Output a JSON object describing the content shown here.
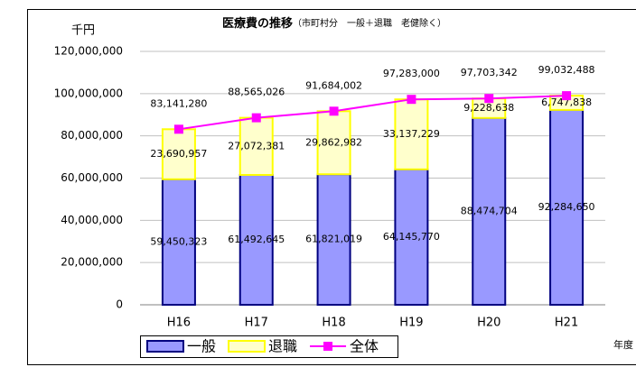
{
  "chart_data": {
    "type": "bar_line",
    "title": "医療費の推移",
    "subtitle": "（市町村分　一般＋退職　老健除く）",
    "y_label": "千円",
    "x_label": "年度",
    "categories": [
      "H16",
      "H17",
      "H18",
      "H19",
      "H20",
      "H21"
    ],
    "series": [
      {
        "name": "一般",
        "type": "bar",
        "color": "#9999ff",
        "edge": "#000080",
        "values": [
          59450323,
          61492645,
          61821019,
          64145770,
          88474704,
          92284650
        ],
        "value_labels": [
          "59,450,323",
          "61,492,645",
          "61,821,019",
          "64,145,770",
          "88,474,704",
          "92,284,650"
        ]
      },
      {
        "name": "退職",
        "type": "bar",
        "color": "#ffffcc",
        "edge": "#ffff00",
        "values": [
          23690957,
          27072381,
          29862982,
          33137229,
          9228638,
          6747838
        ],
        "value_labels": [
          "23,690,957",
          "27,072,381",
          "29,862,982",
          "33,137,229",
          "9,228,638",
          "6,747,838"
        ]
      },
      {
        "name": "全体",
        "type": "line",
        "color": "#ff00ff",
        "values": [
          83141280,
          88565026,
          91684002,
          97283000,
          97703342,
          99032488
        ],
        "value_labels": [
          "83,141,280",
          "88,565,026",
          "91,684,002",
          "97,283,000",
          "97,703,342",
          "99,032,488"
        ]
      }
    ],
    "ylim": [
      0,
      120000000
    ],
    "yticks": [
      0,
      {
        "value": 20000000,
        "label": "20,000,000"
      },
      {
        "value": 40000000,
        "label": "40,000,000"
      },
      {
        "value": 60000000,
        "label": "60,000,000"
      },
      {
        "value": 80000000,
        "label": "80,000,000"
      },
      {
        "value": 100000000,
        "label": "100,000,000"
      },
      {
        "value": 120000000,
        "label": "120,000,000"
      }
    ],
    "grid": true,
    "legend": "bottom"
  }
}
